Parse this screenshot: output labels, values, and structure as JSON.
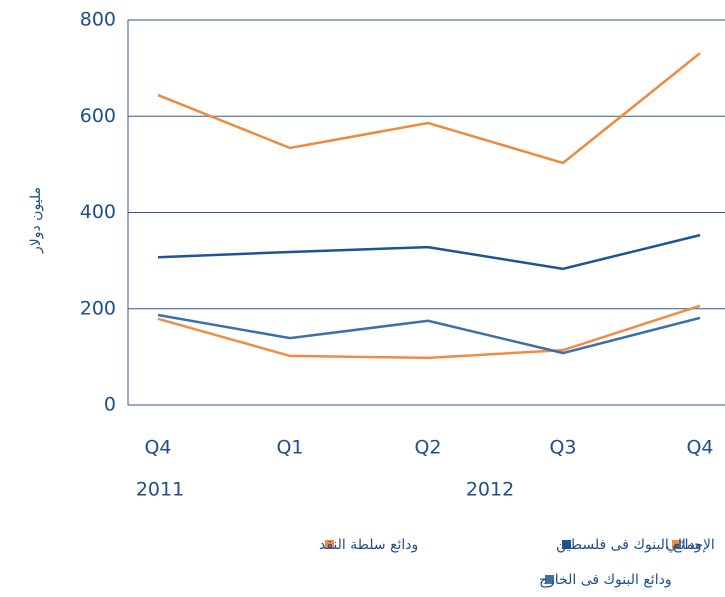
{
  "chart_data": {
    "type": "line",
    "y_label": "مليون دولار",
    "categories": [
      "Q4",
      "Q1",
      "Q2",
      "Q3",
      "Q4"
    ],
    "year_labels": [
      "2011",
      "2012"
    ],
    "series": [
      {
        "name": "الإجمالي",
        "color": "#ef8a3a",
        "values": [
          644,
          534,
          586,
          503,
          731
        ]
      },
      {
        "name": "ودائع البنوك فى فلسطين",
        "color": "#1f5494",
        "values": [
          307,
          318,
          328,
          283,
          353
        ]
      },
      {
        "name": "ودائع سلطة النقد",
        "color": "#f08c44",
        "values": [
          179,
          102,
          98,
          114,
          206
        ]
      },
      {
        "name": "ودائع البنوك فى الخارج",
        "color": "#3d70a8",
        "values": [
          187,
          139,
          175,
          108,
          181
        ]
      }
    ],
    "ylim": [
      0,
      800
    ],
    "yticks": [
      0,
      200,
      400,
      600,
      800
    ],
    "grid": true
  }
}
